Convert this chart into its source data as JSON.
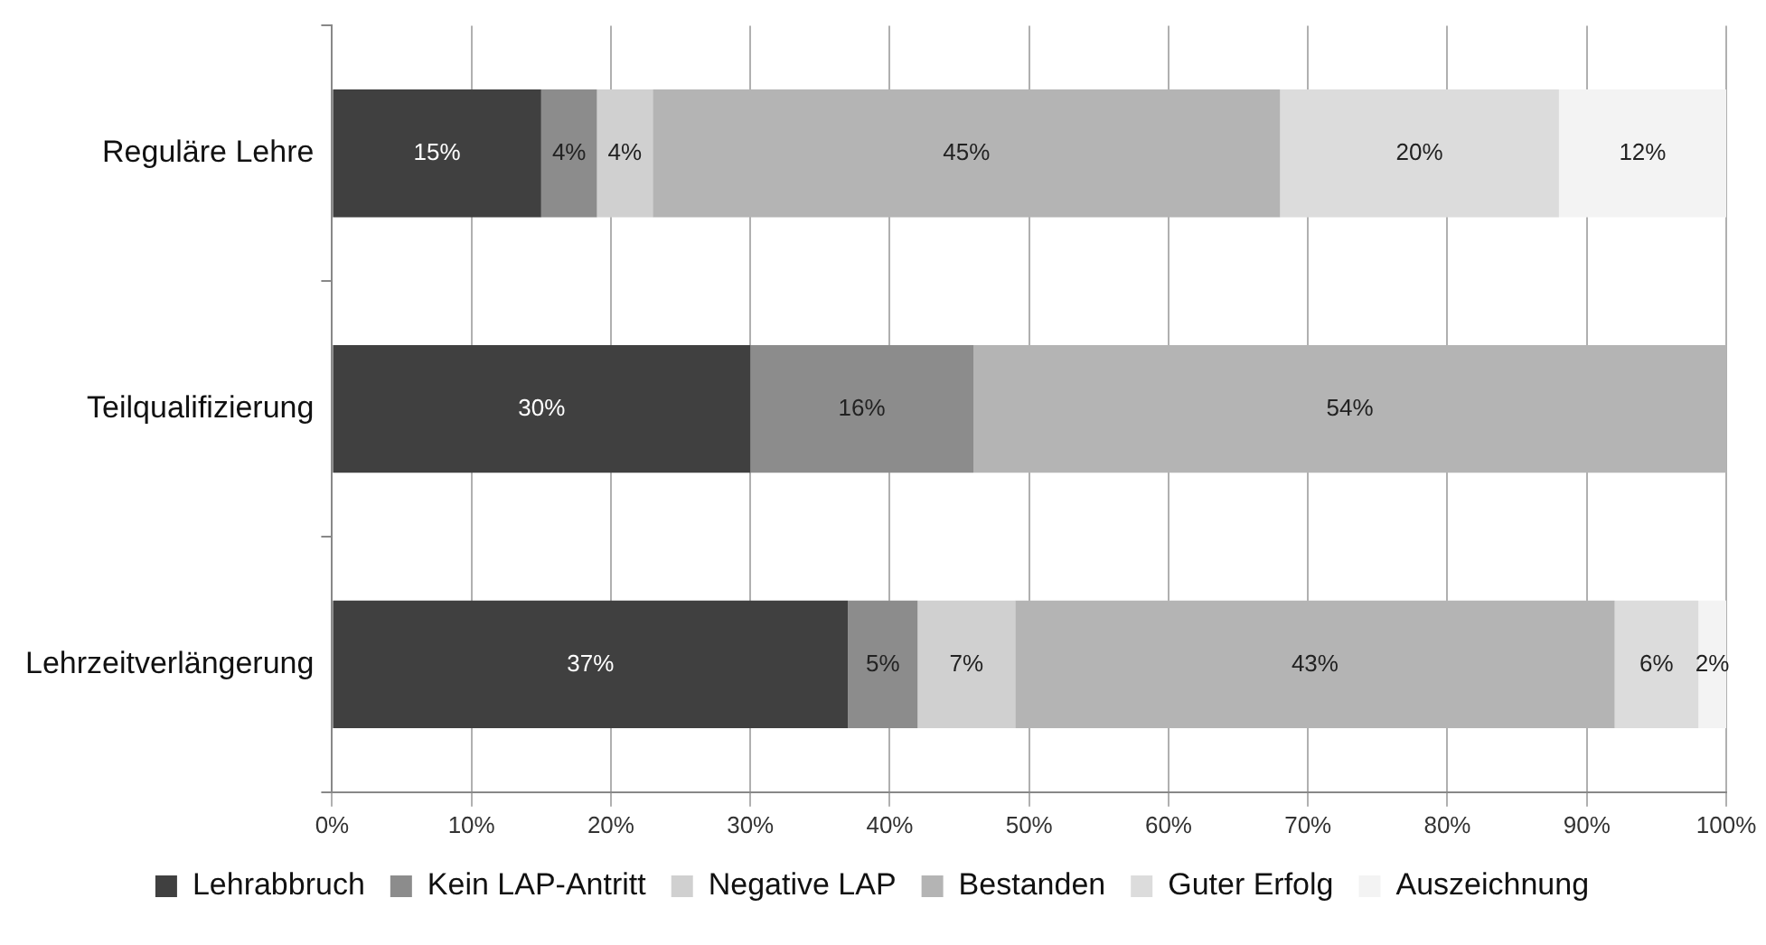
{
  "chart_data": {
    "type": "bar",
    "orientation": "horizontal",
    "stacked": true,
    "categories": [
      "Reguläre Lehre",
      "Teilqualifizierung",
      "Lehrzeitverlängerung"
    ],
    "series": [
      {
        "name": "Lehrabbruch",
        "color": "#404040",
        "values": [
          15,
          30,
          37
        ],
        "value_labels": [
          "15%",
          "30%",
          "37%"
        ]
      },
      {
        "name": "Kein LAP-Antritt",
        "color": "#8c8c8c",
        "values": [
          4,
          16,
          5
        ],
        "value_labels": [
          "4%",
          "16%",
          "5%"
        ]
      },
      {
        "name": "Negative LAP",
        "color": "#d0d0d0",
        "values": [
          4,
          null,
          7
        ],
        "value_labels": [
          "4%",
          null,
          "7%"
        ]
      },
      {
        "name": "Bestanden",
        "color": "#b4b4b4",
        "values": [
          45,
          54,
          43
        ],
        "value_labels": [
          "45%",
          "54%",
          "43%"
        ]
      },
      {
        "name": "Guter Erfolg",
        "color": "#dcdcdc",
        "values": [
          20,
          null,
          6
        ],
        "value_labels": [
          "20%",
          null,
          "6%"
        ]
      },
      {
        "name": "Auszeichnung",
        "color": "#f3f3f3",
        "values": [
          12,
          null,
          2
        ],
        "value_labels": [
          "12%",
          null,
          "2%"
        ]
      }
    ],
    "xlim": [
      0,
      100
    ],
    "xticks": [
      {
        "value": 0,
        "label": "0%"
      },
      {
        "value": 10,
        "label": "10%"
      },
      {
        "value": 20,
        "label": "20%"
      },
      {
        "value": 30,
        "label": "30%"
      },
      {
        "value": 40,
        "label": "40%"
      },
      {
        "value": 50,
        "label": "50%"
      },
      {
        "value": 60,
        "label": "60%"
      },
      {
        "value": 70,
        "label": "70%"
      },
      {
        "value": 80,
        "label": "80%"
      },
      {
        "value": 90,
        "label": "90%"
      },
      {
        "value": 100,
        "label": "100%"
      }
    ],
    "grid": "x",
    "legend": "bottom"
  }
}
